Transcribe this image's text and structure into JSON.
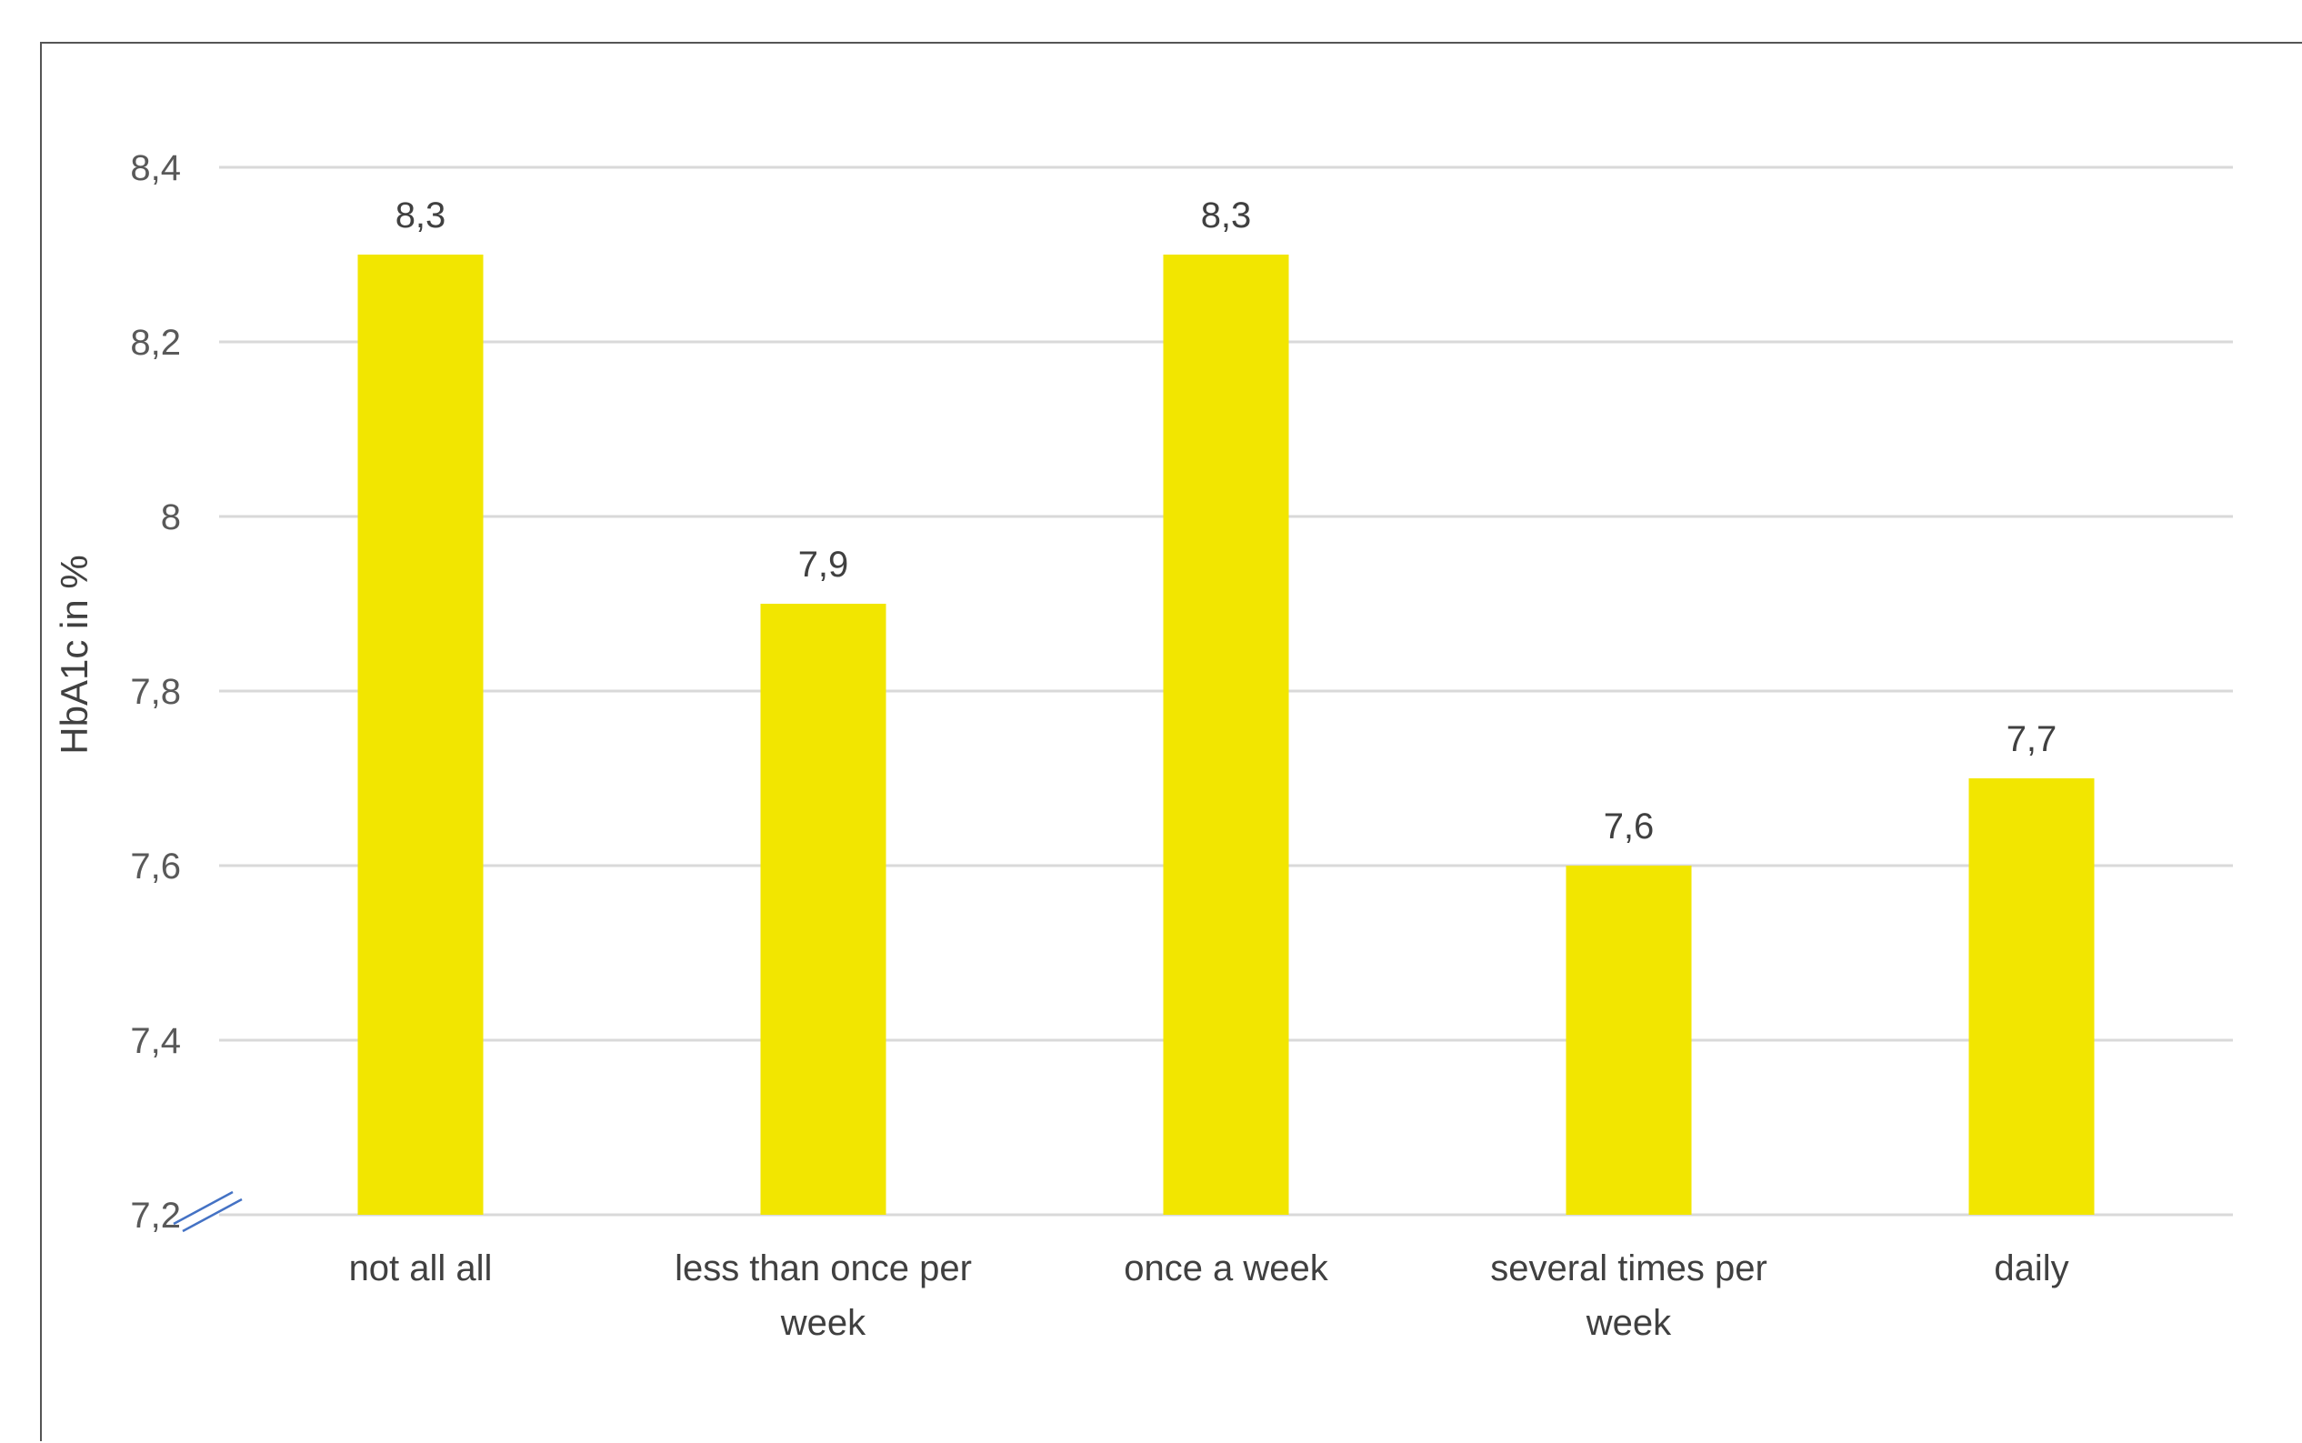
{
  "chart_data": {
    "type": "bar",
    "ylabel": "HbA1c in %",
    "xlabel": "",
    "categories": [
      "not all all",
      "less than once per week",
      "once a week",
      "several times per week",
      "daily"
    ],
    "category_lines": [
      [
        "not all all"
      ],
      [
        "less than once per",
        "week"
      ],
      [
        "once a week"
      ],
      [
        "several times per",
        "week"
      ],
      [
        "daily"
      ]
    ],
    "values": [
      8.3,
      7.9,
      8.3,
      7.6,
      7.7
    ],
    "value_labels": [
      "8,3",
      "7,9",
      "8,3",
      "7,6",
      "7,7"
    ],
    "ylim": [
      7.2,
      8.4
    ],
    "yticks": [
      7.2,
      7.4,
      7.6,
      7.8,
      8.0,
      8.2,
      8.4
    ],
    "ytick_labels": [
      "7,2",
      "7,4",
      "7,6",
      "7,8",
      "8",
      "8,2",
      "8,4"
    ],
    "axis_break": true,
    "grid": true,
    "legend": "none",
    "colors": {
      "bar": "#F2E600",
      "grid": "#D9D9D9",
      "axis_break": "#4472C4"
    }
  }
}
